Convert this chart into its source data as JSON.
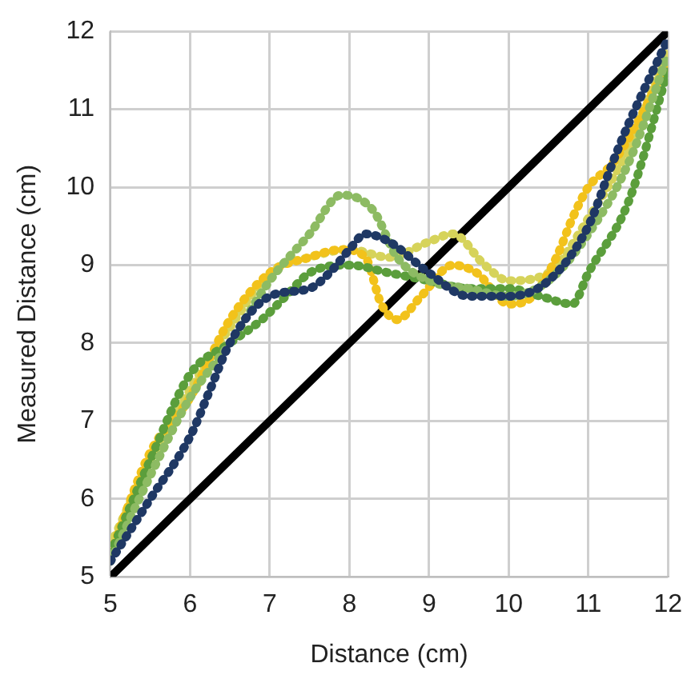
{
  "chart_data": {
    "type": "line",
    "xlabel": "Distance (cm)",
    "ylabel": "Measured Distance (cm)",
    "xlim": [
      5,
      12
    ],
    "ylim": [
      5,
      12
    ],
    "xticks": [
      5,
      6,
      7,
      8,
      9,
      10,
      11,
      12
    ],
    "yticks": [
      5,
      6,
      7,
      8,
      9,
      10,
      11,
      12
    ],
    "grid": true,
    "legend": false,
    "line_style": "dotted",
    "marker": "none",
    "series": [
      {
        "color": "#1f3864",
        "x": [
          5,
          5.5,
          6,
          6.25,
          6.5,
          7,
          7.5,
          7.75,
          8,
          8.2,
          8.5,
          9,
          9.5,
          10,
          10.5,
          11,
          11.3,
          11.5,
          12
        ],
        "values": [
          5.2,
          6.0,
          6.8,
          7.4,
          8.0,
          8.6,
          8.7,
          8.9,
          9.2,
          9.4,
          9.3,
          8.9,
          8.6,
          8.6,
          8.8,
          9.5,
          10.3,
          10.8,
          11.9
        ]
      },
      {
        "color": "#8dbb63",
        "x": [
          5,
          5.5,
          6,
          6.5,
          7,
          7.5,
          7.9,
          8.3,
          8.6,
          9,
          9.5,
          10,
          10.5,
          11,
          11.5,
          12
        ],
        "values": [
          5.2,
          6.3,
          7.3,
          8.0,
          8.8,
          9.4,
          9.9,
          9.7,
          9.1,
          8.8,
          8.7,
          8.6,
          8.8,
          9.4,
          10.3,
          11.7
        ]
      },
      {
        "color": "#5b9e3c",
        "x": [
          5,
          5.5,
          6,
          6.5,
          6.9,
          7.2,
          7.5,
          8,
          8.5,
          9,
          9.5,
          10,
          10.4,
          10.8,
          11,
          11.5,
          12
        ],
        "values": [
          5.3,
          6.5,
          7.6,
          8.0,
          8.3,
          8.6,
          8.9,
          9.0,
          8.9,
          8.8,
          8.7,
          8.7,
          8.6,
          8.5,
          8.9,
          9.8,
          11.5
        ]
      },
      {
        "color": "#f2c21b",
        "x": [
          5,
          5.5,
          6,
          6.5,
          7,
          7.5,
          7.9,
          8.2,
          8.4,
          8.6,
          8.9,
          9.3,
          9.6,
          10,
          10.3,
          10.6,
          10.8,
          11,
          11.3,
          11.6,
          12
        ],
        "values": [
          5.3,
          6.6,
          7.3,
          8.3,
          8.9,
          9.1,
          9.2,
          9.1,
          8.5,
          8.3,
          8.6,
          9.0,
          8.9,
          8.5,
          8.6,
          9.1,
          9.6,
          10.0,
          10.3,
          10.8,
          11.6
        ]
      },
      {
        "color": "#d6d35a",
        "x": [
          5,
          5.5,
          6,
          6.5,
          7,
          7.5,
          8,
          8.5,
          9,
          9.3,
          9.7,
          10,
          10.5,
          11,
          11.5,
          12
        ],
        "values": [
          5.4,
          6.5,
          7.4,
          8.2,
          8.9,
          9.1,
          9.2,
          9.1,
          9.3,
          9.4,
          9.0,
          8.8,
          8.9,
          9.6,
          10.5,
          11.8
        ]
      },
      {
        "color": "#000000",
        "line_style": "solid",
        "x": [
          5,
          12
        ],
        "values": [
          5,
          12
        ]
      }
    ]
  }
}
